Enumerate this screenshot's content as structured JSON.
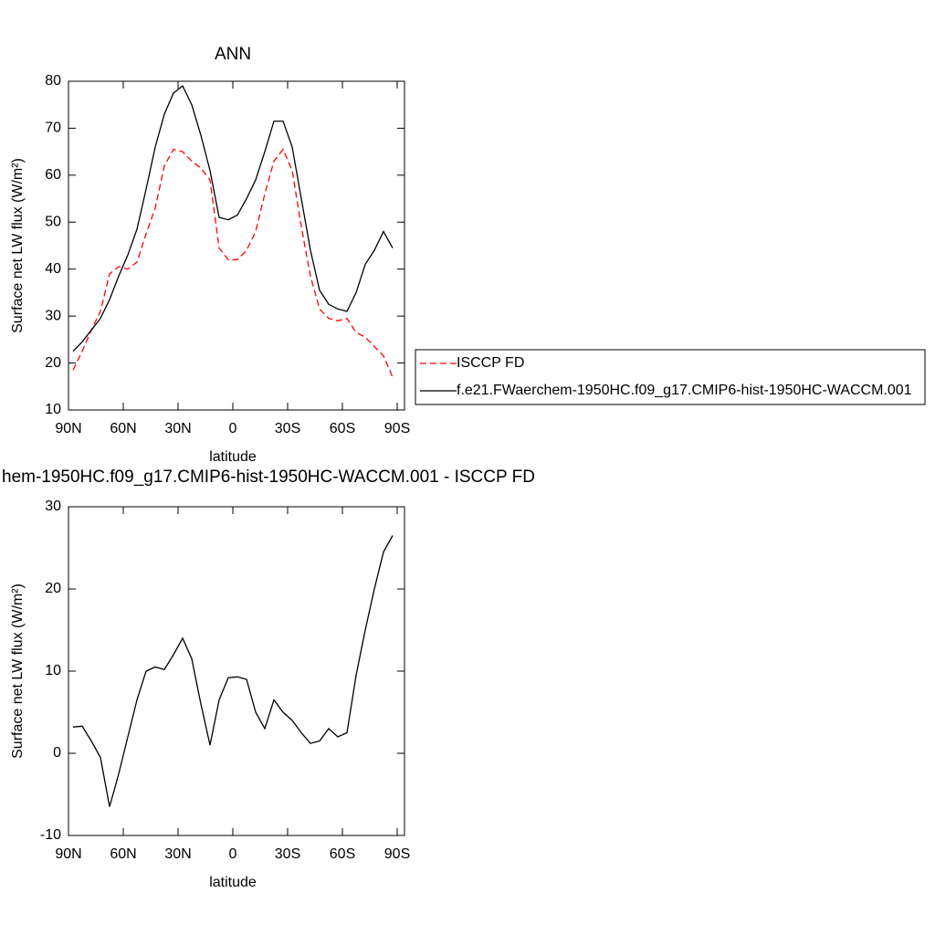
{
  "chart_data": [
    {
      "type": "line",
      "title": "ANN",
      "xlabel": "latitude",
      "ylabel": "Surface net LW flux (W/m²)",
      "x": [
        87.5,
        82.5,
        77.5,
        72.5,
        67.5,
        62.5,
        57.5,
        52.5,
        47.5,
        42.5,
        37.5,
        32.5,
        27.5,
        22.5,
        17.5,
        12.5,
        7.5,
        2.5,
        -2.5,
        -7.5,
        -12.5,
        -17.5,
        -22.5,
        -27.5,
        -32.5,
        -37.5,
        -42.5,
        -47.5,
        -52.5,
        -57.5,
        -62.5,
        -67.5,
        -72.5,
        -77.5,
        -82.5,
        -87.5
      ],
      "series": [
        {
          "name": "ISCCP FD",
          "color": "#ff0000",
          "linestyle": "dashed",
          "values": [
            18.5,
            22.5,
            27,
            31,
            39,
            40.5,
            40,
            41.5,
            47.5,
            53,
            62,
            65.5,
            65,
            63,
            61.5,
            59,
            44.5,
            42,
            42,
            44,
            48,
            56,
            63,
            65.5,
            61,
            49,
            38.5,
            31.5,
            29.5,
            29,
            29.5,
            26.5,
            25.5,
            23.5,
            21.5,
            17
          ]
        },
        {
          "name": "f.e21.FWaerchem-1950HC.f09_g17.CMIP6-hist-1950HC-WACCM.001",
          "color": "#000000",
          "linestyle": "solid",
          "values": [
            22.5,
            24.5,
            27,
            29.5,
            33.5,
            38.5,
            43,
            48.5,
            57,
            66,
            73,
            77.5,
            79,
            75,
            68.5,
            61,
            51,
            50.5,
            51.5,
            55,
            59,
            65,
            71.5,
            71.5,
            66,
            55,
            44,
            35.5,
            32.5,
            31.5,
            31,
            35,
            41,
            44,
            48,
            44.5
          ]
        }
      ],
      "xlim": [
        90,
        -94
      ],
      "xticks": [
        {
          "value": 90,
          "label": "90N"
        },
        {
          "value": 60,
          "label": "60N"
        },
        {
          "value": 30,
          "label": "30N"
        },
        0,
        {
          "value": -30,
          "label": "30S"
        },
        {
          "value": -60,
          "label": "60S"
        },
        {
          "value": -90,
          "label": "90S"
        }
      ],
      "ylim": [
        10,
        80
      ],
      "yticks": [
        10,
        20,
        30,
        40,
        50,
        60,
        70,
        80
      ],
      "legend": "right"
    },
    {
      "type": "line",
      "title": "hem-1950HC.f09_g17.CMIP6-hist-1950HC-WACCM.001 - ISCCP FD",
      "xlabel": "latitude",
      "ylabel": "Surface net LW flux (W/m²)",
      "x": [
        87.5,
        82.5,
        77.5,
        72.5,
        67.5,
        62.5,
        57.5,
        52.5,
        47.5,
        42.5,
        37.5,
        32.5,
        27.5,
        22.5,
        17.5,
        12.5,
        7.5,
        2.5,
        -2.5,
        -7.5,
        -12.5,
        -17.5,
        -22.5,
        -27.5,
        -32.5,
        -37.5,
        -42.5,
        -47.5,
        -52.5,
        -57.5,
        -62.5,
        -67.5,
        -72.5,
        -77.5,
        -82.5,
        -87.5
      ],
      "series": [
        {
          "color": "#000000",
          "linestyle": "solid",
          "values": [
            3.2,
            3.3,
            1.5,
            -0.5,
            -6.5,
            -2.5,
            2,
            6.5,
            10,
            10.5,
            10.2,
            12,
            14,
            11.5,
            6,
            1,
            6.5,
            9.2,
            9.3,
            9,
            5,
            3,
            6.5,
            5,
            4,
            2.5,
            1.2,
            1.5,
            3,
            2,
            2.5,
            9.5,
            15,
            20,
            24.5,
            26.5
          ]
        }
      ],
      "xlim": [
        90,
        -94
      ],
      "xticks": [
        {
          "value": 90,
          "label": "90N"
        },
        {
          "value": 60,
          "label": "60N"
        },
        {
          "value": 30,
          "label": "30N"
        },
        0,
        {
          "value": -30,
          "label": "30S"
        },
        {
          "value": -60,
          "label": "60S"
        },
        {
          "value": -90,
          "label": "90S"
        }
      ],
      "ylim": [
        -10,
        30
      ],
      "yticks": [
        -10,
        0,
        10,
        20,
        30
      ]
    }
  ]
}
